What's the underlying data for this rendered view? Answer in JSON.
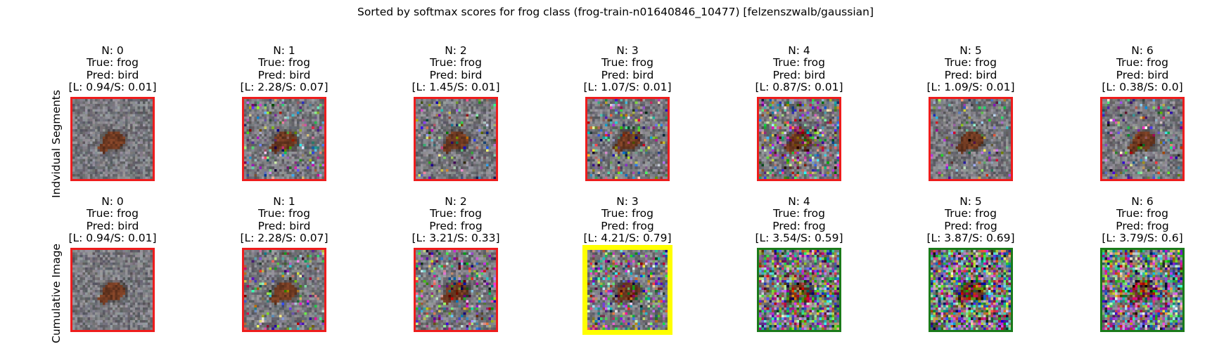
{
  "title": "Sorted by softmax scores for frog class (frog-train-n01640846_10477) [felzenszwalb/gaussian]",
  "colors": {
    "red_border": "#ee1c1c",
    "yellow_border": "#ffff00",
    "green_border": "#1a7a1a",
    "background_gray": "#8e8e8e",
    "frog_brown": "#6a3a22"
  },
  "chart_data": {
    "type": "image-grid",
    "rows": [
      {
        "label": "Indvidual Segments",
        "panels": [
          {
            "n": "N: 0",
            "true": "True: frog",
            "pred": "Pred: bird",
            "scores": "[L: 0.94/S: 0.01]",
            "border": "red"
          },
          {
            "n": "N: 1",
            "true": "True: frog",
            "pred": "Pred: bird",
            "scores": "[L: 2.28/S: 0.07]",
            "border": "red"
          },
          {
            "n": "N: 2",
            "true": "True: frog",
            "pred": "Pred: bird",
            "scores": "[L: 1.45/S: 0.01]",
            "border": "red"
          },
          {
            "n": "N: 3",
            "true": "True: frog",
            "pred": "Pred: bird",
            "scores": "[L: 1.07/S: 0.01]",
            "border": "red"
          },
          {
            "n": "N: 4",
            "true": "True: frog",
            "pred": "Pred: bird",
            "scores": "[L: 0.87/S: 0.01]",
            "border": "red"
          },
          {
            "n": "N: 5",
            "true": "True: frog",
            "pred": "Pred: bird",
            "scores": "[L: 1.09/S: 0.01]",
            "border": "red"
          },
          {
            "n": "N: 6",
            "true": "True: frog",
            "pred": "Pred: bird",
            "scores": "[L: 0.38/S: 0.0]",
            "border": "red"
          }
        ]
      },
      {
        "label": "Cumulative Image",
        "panels": [
          {
            "n": "N: 0",
            "true": "True: frog",
            "pred": "Pred: bird",
            "scores": "[L: 0.94/S: 0.01]",
            "border": "red"
          },
          {
            "n": "N: 1",
            "true": "True: frog",
            "pred": "Pred: bird",
            "scores": "[L: 2.28/S: 0.07]",
            "border": "red"
          },
          {
            "n": "N: 2",
            "true": "True: frog",
            "pred": "Pred: frog",
            "scores": "[L: 3.21/S: 0.33]",
            "border": "red"
          },
          {
            "n": "N: 3",
            "true": "True: frog",
            "pred": "Pred: frog",
            "scores": "[L: 4.21/S: 0.79]",
            "border": "yellow"
          },
          {
            "n": "N: 4",
            "true": "True: frog",
            "pred": "Pred: frog",
            "scores": "[L: 3.54/S: 0.59]",
            "border": "green"
          },
          {
            "n": "N: 5",
            "true": "True: frog",
            "pred": "Pred: frog",
            "scores": "[L: 3.87/S: 0.69]",
            "border": "green"
          },
          {
            "n": "N: 6",
            "true": "True: frog",
            "pred": "Pred: frog",
            "scores": "[L: 3.79/S: 0.6]",
            "border": "green"
          }
        ]
      }
    ]
  }
}
